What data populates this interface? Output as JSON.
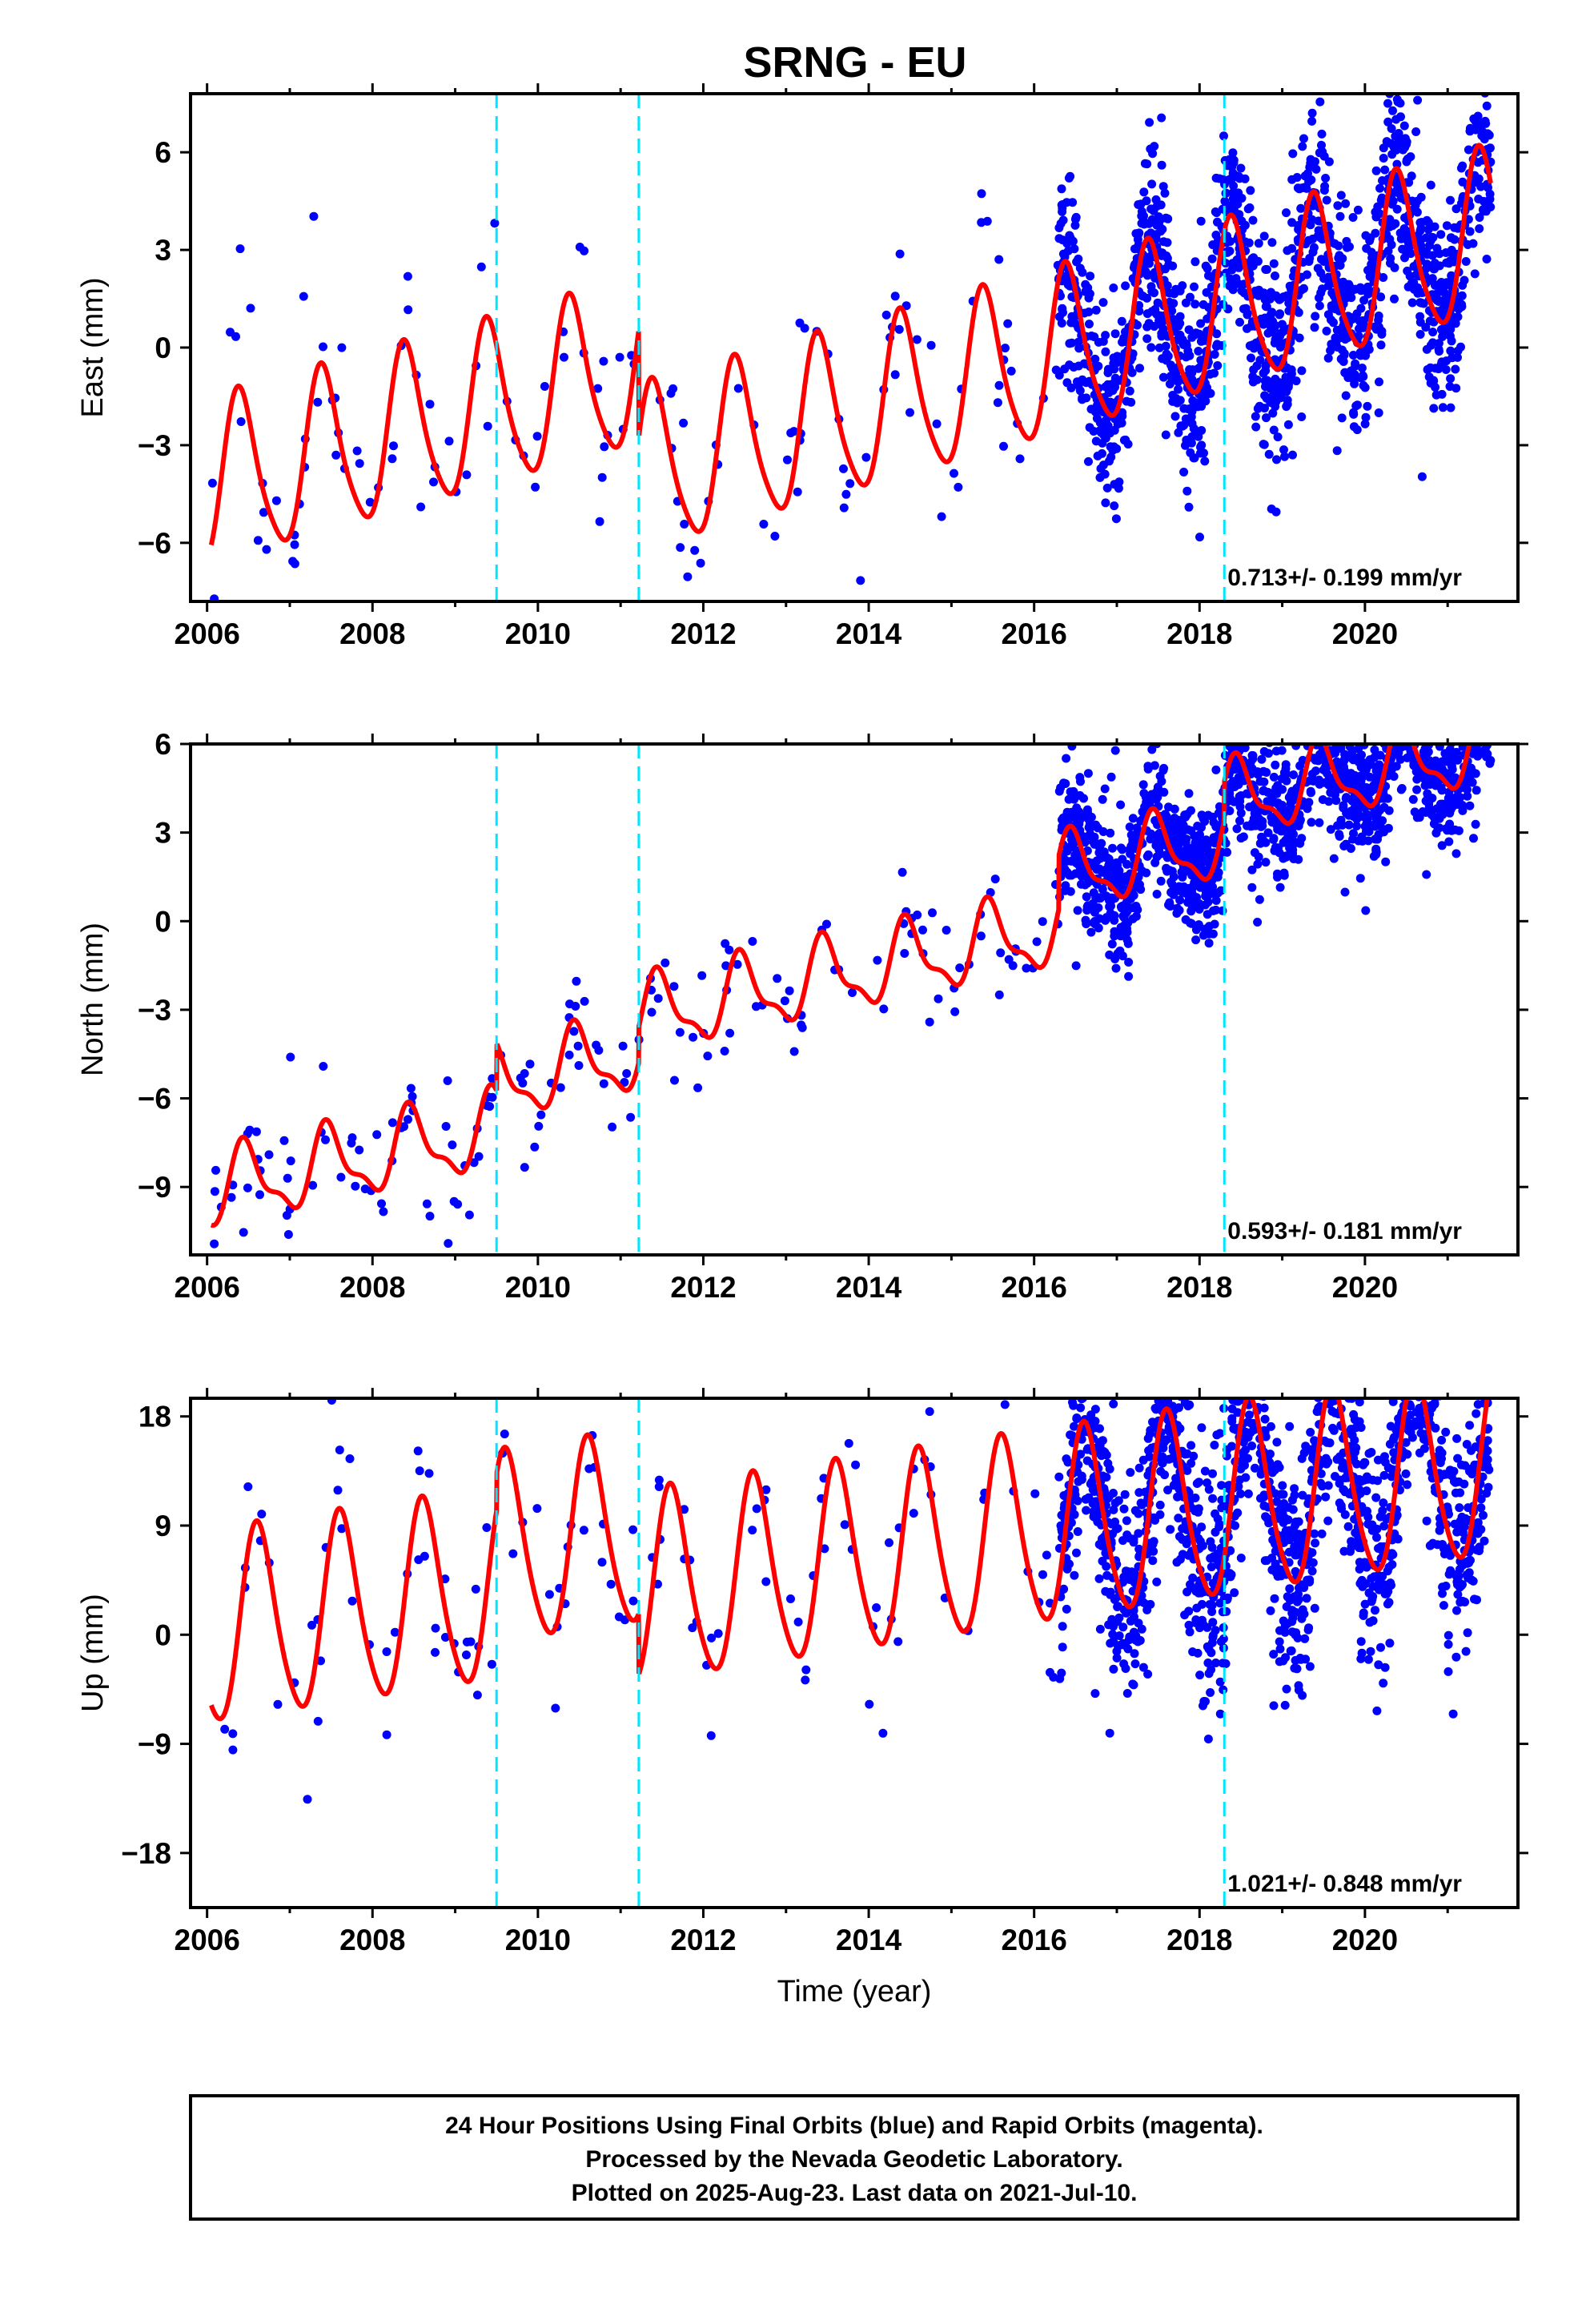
{
  "title": "SRNG - EU",
  "caption": {
    "lines": [
      "24 Hour Positions Using Final Orbits (blue) and Rapid Orbits (magenta).",
      "Processed by the Nevada Geodetic Laboratory.",
      "Plotted on 2025-Aug-23. Last data on 2021-Jul-10."
    ]
  },
  "colors": {
    "points": "#0000ff",
    "model": "#ff0000",
    "events": "#00e5ff",
    "frame": "#000000"
  },
  "chart_data": [
    {
      "type": "scatter",
      "name": "east",
      "ylabel": "East (mm)",
      "xlabel": "",
      "xlim": [
        2005.8,
        2021.85
      ],
      "ylim": [
        -7.8,
        7.8
      ],
      "xticks": [
        2006,
        2008,
        2010,
        2012,
        2014,
        2016,
        2018,
        2020
      ],
      "xtick_labels": [
        "2006",
        "2008",
        "2010",
        "2012",
        "2014",
        "2016",
        "2018",
        "2020"
      ],
      "yticks": [
        6,
        3,
        0,
        -3,
        -6
      ],
      "ytick_labels": [
        "6",
        "3",
        "0",
        "−3",
        "−6"
      ],
      "rate_text": "0.713+/- 0.199 mm/yr",
      "event_lines": [
        2009.5,
        2011.22,
        2018.3
      ],
      "model": {
        "rate": 0.713,
        "offset": -4.2,
        "ref_year": 2006.1,
        "amplitude": 2.5,
        "semiannual": 0.4,
        "peak_phase": 0.4,
        "steps": [
          {
            "year": 2011.22,
            "size": -3.3
          }
        ],
        "x_range": [
          2006.05,
          2021.52
        ]
      },
      "scatter": {
        "sparse_range": [
          2006.05,
          2016.3
        ],
        "dense_range": [
          2016.3,
          2021.52
        ],
        "sparse_per_year": 14,
        "dense_per_year": 300,
        "noise": 1.5
      }
    },
    {
      "type": "scatter",
      "name": "north",
      "ylabel": "North (mm)",
      "xlabel": "",
      "xlim": [
        2005.8,
        2021.85
      ],
      "ylim": [
        -11.3,
        6
      ],
      "xticks": [
        2006,
        2008,
        2010,
        2012,
        2014,
        2016,
        2018,
        2020
      ],
      "xtick_labels": [
        "2006",
        "2008",
        "2010",
        "2012",
        "2014",
        "2016",
        "2018",
        "2020"
      ],
      "yticks": [
        6,
        3,
        0,
        -3,
        -6,
        -9
      ],
      "ytick_labels": [
        "6",
        "3",
        "0",
        "−3",
        "−6",
        "−9"
      ],
      "rate_text": "0.593+/- 0.181 mm/yr",
      "event_lines": [
        2009.5,
        2011.22,
        2018.3
      ],
      "model": {
        "rate": 0.593,
        "offset": -9.1,
        "ref_year": 2006.1,
        "amplitude": 1.2,
        "semiannual": 0.45,
        "peak_phase": 0.47,
        "steps": [
          {
            "year": 2009.5,
            "size": 1.6
          },
          {
            "year": 2011.22,
            "size": 1.2
          },
          {
            "year": 2016.3,
            "size": 1.8
          },
          {
            "year": 2018.3,
            "size": 1.3
          }
        ],
        "x_range": [
          2006.05,
          2021.52
        ]
      },
      "scatter": {
        "sparse_range": [
          2006.05,
          2016.3
        ],
        "dense_range": [
          2016.3,
          2021.52
        ],
        "sparse_per_year": 16,
        "dense_per_year": 300,
        "noise": 1.1
      }
    },
    {
      "type": "scatter",
      "name": "up",
      "ylabel": "Up (mm)",
      "xlabel": "Time (year)",
      "xlim": [
        2005.8,
        2021.85
      ],
      "ylim": [
        -22.5,
        19.5
      ],
      "xticks": [
        2006,
        2008,
        2010,
        2012,
        2014,
        2016,
        2018,
        2020
      ],
      "xtick_labels": [
        "2006",
        "2008",
        "2010",
        "2012",
        "2014",
        "2016",
        "2018",
        "2020"
      ],
      "yticks": [
        18,
        9,
        0,
        -9,
        -18
      ],
      "ytick_labels": [
        "18",
        "9",
        "0",
        "−9",
        "−18"
      ],
      "rate_text": "1.021+/- 0.848 mm/yr",
      "event_lines": [
        2009.5,
        2011.22,
        2018.3
      ],
      "model": {
        "rate": 1.021,
        "offset": 0.3,
        "ref_year": 2006.1,
        "amplitude": 7.8,
        "semiannual": 1.0,
        "peak_phase": 0.62,
        "steps": [
          {
            "year": 2009.5,
            "size": 3.0
          },
          {
            "year": 2011.22,
            "size": -5.0
          }
        ],
        "x_range": [
          2006.05,
          2021.52
        ]
      },
      "scatter": {
        "sparse_range": [
          2006.05,
          2016.3
        ],
        "dense_range": [
          2016.3,
          2021.52
        ],
        "sparse_per_year": 13,
        "dense_per_year": 300,
        "noise": 4.5
      }
    }
  ]
}
